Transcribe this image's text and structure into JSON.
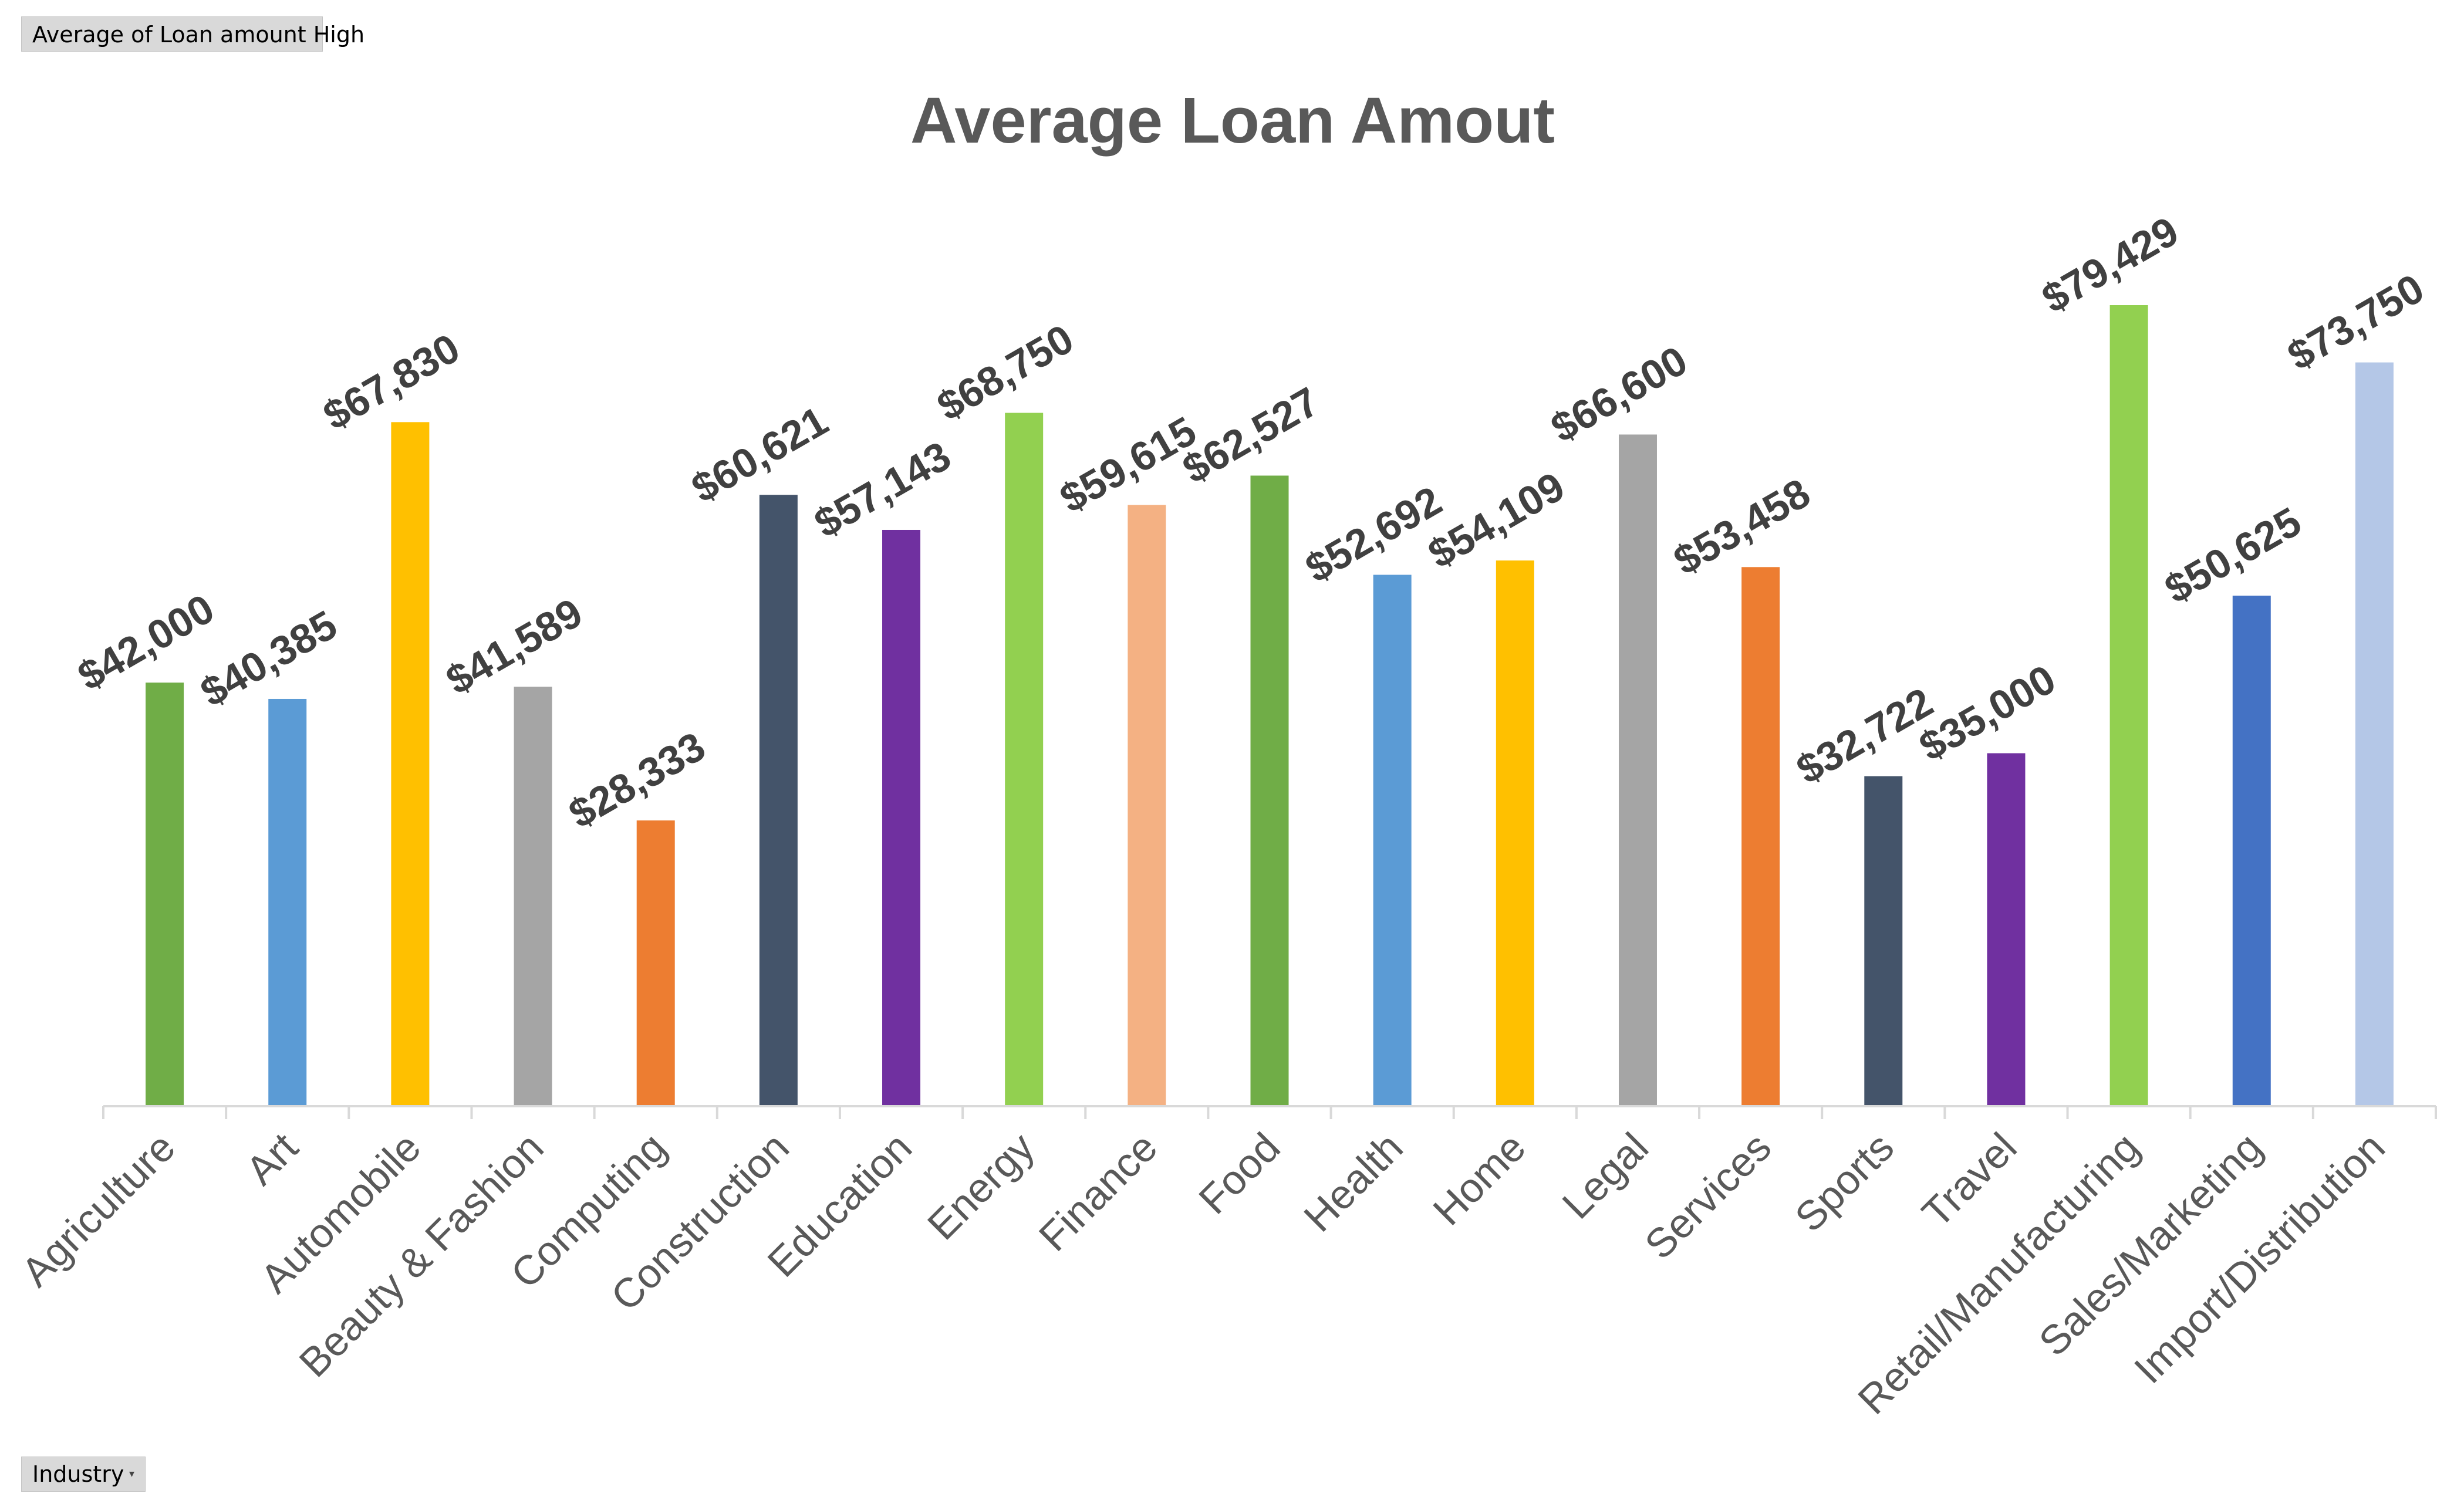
{
  "pivot": {
    "value_field": "Average of Loan amount High",
    "axis_field": "Industry",
    "axis_dropdown_icon": "dropdown-arrow-icon"
  },
  "chart_data": {
    "type": "bar",
    "title": "Average Loan Amout",
    "xlabel": "",
    "ylabel": "",
    "ylim": [
      0,
      90000
    ],
    "grid": false,
    "legend": "none",
    "categories": [
      "Agriculture",
      "Art",
      "Automobile",
      "Beauty & Fashion",
      "Computing",
      "Construction",
      "Education",
      "Energy",
      "Finance",
      "Food",
      "Health",
      "Home",
      "Legal",
      "Services",
      "Sports",
      "Travel",
      "Retail/Manufacturing",
      "Sales/Marketing",
      "Import/Distribution"
    ],
    "values": [
      42000,
      40385,
      67830,
      41589,
      28333,
      60621,
      57143,
      68750,
      59615,
      62527,
      52692,
      54109,
      66600,
      53458,
      32722,
      35000,
      79429,
      50625,
      73750
    ],
    "data_labels": [
      "$42,000",
      "$40,385",
      "$67,830",
      "$41,589",
      "$28,333",
      "$60,621",
      "$57,143",
      "$68,750",
      "$59,615",
      "$62,527",
      "$52,692",
      "$54,109",
      "$66,600",
      "$53,458",
      "$32,722",
      "$35,000",
      "$79,429",
      "$50,625",
      "$73,750"
    ],
    "bar_colors": [
      "#70ad47",
      "#5b9bd5",
      "#ffc000",
      "#a5a5a5",
      "#ed7d31",
      "#44546a",
      "#7030a0",
      "#92d050",
      "#f4b183",
      "#70ad47",
      "#5b9bd5",
      "#ffc000",
      "#a5a5a5",
      "#ed7d31",
      "#44546a",
      "#7030a0",
      "#92d050",
      "#4472c4",
      "#b4c7e7"
    ],
    "axis_color": "#d9d9d9"
  }
}
